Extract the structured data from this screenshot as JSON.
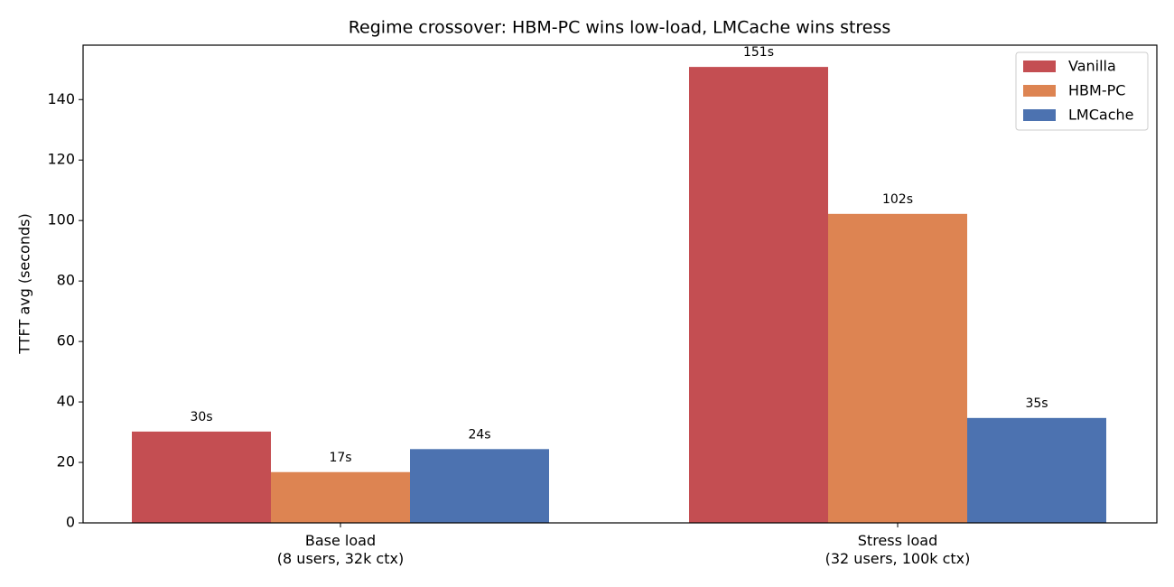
{
  "chart_data": {
    "type": "bar",
    "title": "Regime crossover: HBM-PC wins low-load, LMCache wins stress",
    "y_label": "TTFT avg (seconds)",
    "categories": [
      "Base load\n(8 users, 32k ctx)",
      "Stress load\n(32 users, 100k ctx)"
    ],
    "series": [
      {
        "name": "Vanilla",
        "color": "#c44e52",
        "values": [
          30.2,
          150.8
        ],
        "value_labels": [
          "30s",
          "151s"
        ]
      },
      {
        "name": "HBM-PC",
        "color": "#dd8452",
        "values": [
          16.8,
          102.2
        ],
        "value_labels": [
          "17s",
          "102s"
        ]
      },
      {
        "name": "LMCache",
        "color": "#4c72b0",
        "values": [
          24.4,
          34.7
        ],
        "value_labels": [
          "24s",
          "35s"
        ]
      }
    ],
    "ylim": [
      0,
      158
    ],
    "yticks": [
      0,
      20,
      40,
      60,
      80,
      100,
      120,
      140
    ],
    "legend": "upper-right"
  }
}
